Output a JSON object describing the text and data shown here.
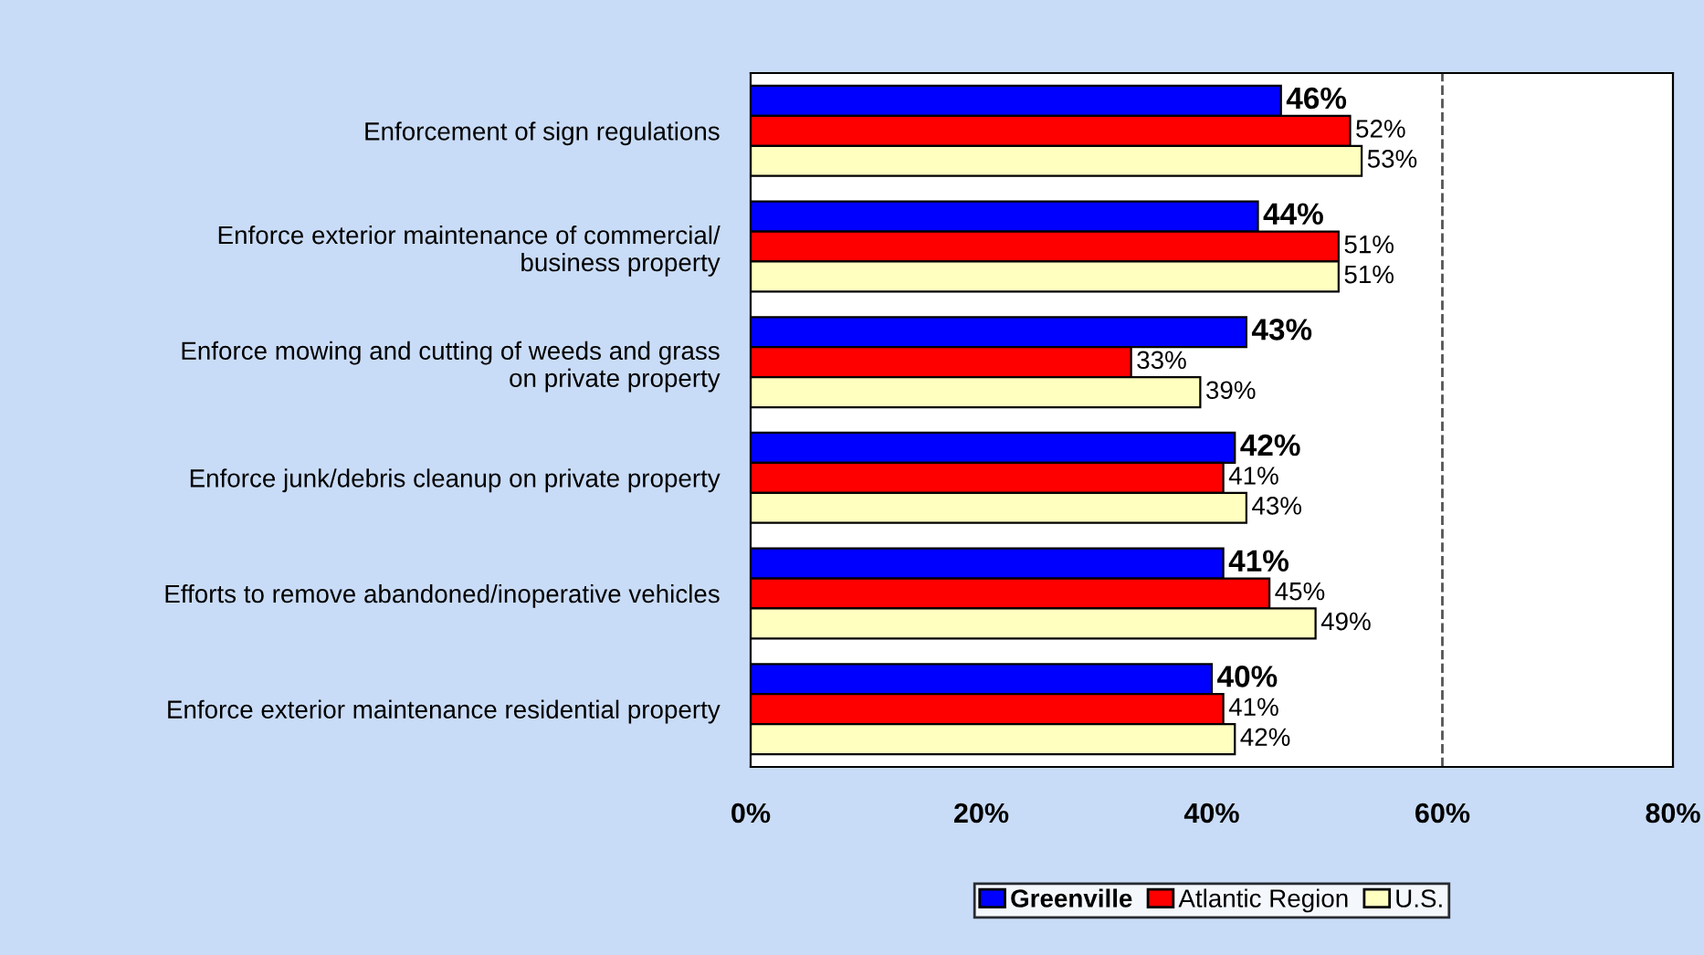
{
  "chart_data": {
    "type": "bar",
    "orientation": "horizontal",
    "categories": [
      "Enforcement of sign regulations",
      "Enforce exterior maintenance of commercial/\nbusiness property",
      "Enforce mowing and cutting of weeds and grass\non private property",
      "Enforce junk/debris cleanup on private property",
      "Efforts to remove abandoned/inoperative vehicles",
      "Enforce exterior maintenance residential property"
    ],
    "series": [
      {
        "name": "Greenville",
        "color": "#0000ff",
        "values": [
          46,
          44,
          43,
          42,
          41,
          40
        ],
        "value_labels": [
          "46%",
          "44%",
          "43%",
          "42%",
          "41%",
          "40%"
        ]
      },
      {
        "name": "Atlantic Region",
        "color": "#ff0000",
        "values": [
          52,
          51,
          33,
          41,
          45,
          41
        ],
        "value_labels": [
          "52%",
          "51%",
          "33%",
          "41%",
          "45%",
          "41%"
        ]
      },
      {
        "name": "U.S.",
        "color": "#ffffc0",
        "values": [
          53,
          51,
          39,
          43,
          49,
          42
        ],
        "value_labels": [
          "53%",
          "51%",
          "39%",
          "43%",
          "49%",
          "42%"
        ]
      }
    ],
    "xlim": [
      0,
      80
    ],
    "xticks": [
      {
        "value": 0,
        "label": "0%"
      },
      {
        "value": 20,
        "label": "20%"
      },
      {
        "value": 40,
        "label": "40%"
      },
      {
        "value": 60,
        "label": "60%"
      },
      {
        "value": 80,
        "label": "80%"
      }
    ],
    "ref_lines": [
      {
        "axis": "x",
        "value": 60,
        "label": null,
        "color": "#555555",
        "line_style": "dashed"
      }
    ],
    "grid": false,
    "legend": "bottom"
  }
}
